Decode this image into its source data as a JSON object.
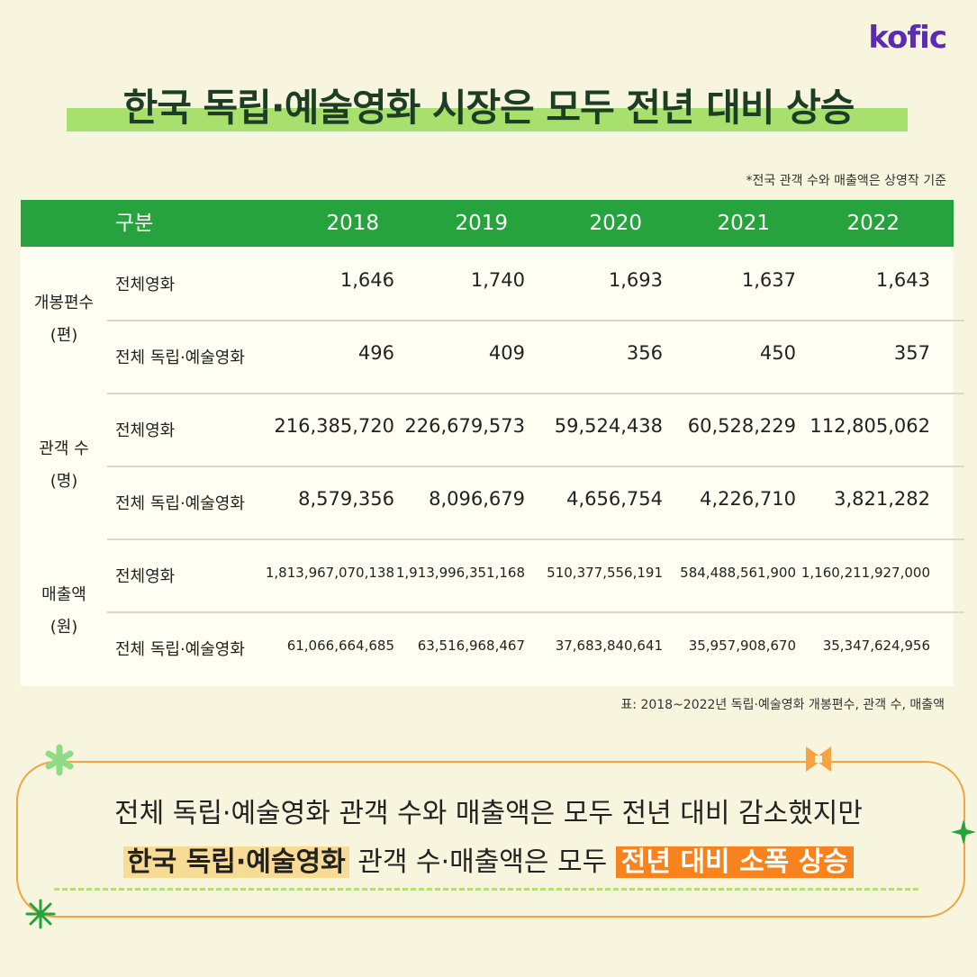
{
  "logo": "kofic",
  "title": "한국 독립·예술영화 시장은 모두 전년 대비 상승",
  "note": "*전국 관객 수와 매출액은 상영작 기준",
  "chart_data": {
    "type": "table",
    "header": {
      "label": "구분",
      "years": [
        "2018",
        "2019",
        "2020",
        "2021",
        "2022"
      ]
    },
    "groups": [
      {
        "name": "개봉편수",
        "unit": "(편)",
        "rows": [
          {
            "label": "전체영화",
            "values": [
              "1,646",
              "1,740",
              "1,693",
              "1,637",
              "1,643"
            ]
          },
          {
            "label": "전체 독립·예술영화",
            "values": [
              "496",
              "409",
              "356",
              "450",
              "357"
            ]
          }
        ]
      },
      {
        "name": "관객 수",
        "unit": "(명)",
        "rows": [
          {
            "label": "전체영화",
            "values": [
              "216,385,720",
              "226,679,573",
              "59,524,438",
              "60,528,229",
              "112,805,062"
            ]
          },
          {
            "label": "전체 독립·예술영화",
            "values": [
              "8,579,356",
              "8,096,679",
              "4,656,754",
              "4,226,710",
              "3,821,282"
            ]
          }
        ]
      },
      {
        "name": "매출액",
        "unit": "(원)",
        "rows": [
          {
            "label": "전체영화",
            "values": [
              "1,813,967,070,138",
              "1,913,996,351,168",
              "510,377,556,191",
              "584,488,561,900",
              "1,160,211,927,000"
            ]
          },
          {
            "label": "전체 독립·예술영화",
            "values": [
              "61,066,664,685",
              "63,516,968,467",
              "37,683,840,641",
              "35,957,908,670",
              "35,347,624,956"
            ]
          }
        ]
      }
    ]
  },
  "caption": "표: 2018~2022년 독립·예술영화 개봉편수, 관객 수, 매출액",
  "callout": {
    "line1": "전체 독립·예술영화 관객 수와 매출액은 모두 전년 대비 감소했지만",
    "line2_highlight1": "한국 독립·예술영화",
    "line2_middle": " 관객 수·매출액은 모두 ",
    "line2_highlight2": "전년 대비 소폭 상승"
  },
  "colors": {
    "background": "#f7f5dd",
    "header_green": "#26a33c",
    "title_highlight": "#a8e06e",
    "callout_border": "#f5a343",
    "accent_orange": "#f7831e",
    "accent_yellow": "#f8dc96",
    "logo_purple": "#5b2bb3"
  }
}
